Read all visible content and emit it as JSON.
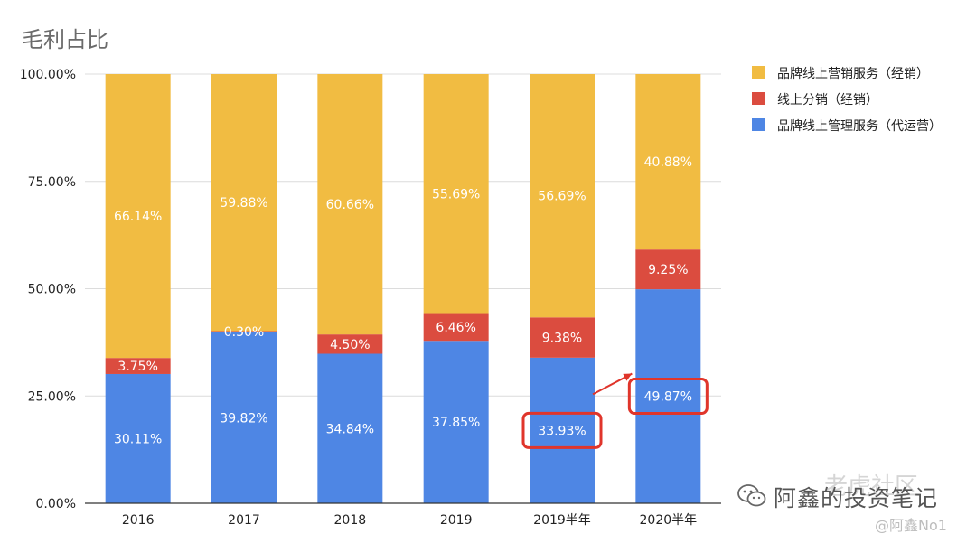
{
  "chart_data": {
    "type": "bar",
    "stacked": true,
    "title": "毛利占比",
    "categories": [
      "2016",
      "2017",
      "2018",
      "2019",
      "2019半年",
      "2020半年"
    ],
    "series": [
      {
        "name": "品牌线上管理服务（代运营）",
        "color": "#4E86E4",
        "values": [
          30.11,
          39.82,
          34.84,
          37.85,
          33.93,
          49.87
        ],
        "labels": [
          "30.11%",
          "39.82%",
          "34.84%",
          "37.85%",
          "33.93%",
          "49.87%"
        ]
      },
      {
        "name": "线上分销（经销）",
        "color": "#DB4C3F",
        "values": [
          3.75,
          0.3,
          4.5,
          6.46,
          9.38,
          9.25
        ],
        "labels": [
          "3.75%",
          "0.30%",
          "4.50%",
          "6.46%",
          "9.38%",
          "9.25%"
        ]
      },
      {
        "name": "品牌线上营销服务（经销）",
        "color": "#F1BC42",
        "values": [
          66.14,
          59.88,
          60.66,
          55.69,
          56.69,
          40.88
        ],
        "labels": [
          "66.14%",
          "59.88%",
          "60.66%",
          "55.69%",
          "56.69%",
          "40.88%"
        ]
      }
    ],
    "ylim": [
      0,
      100
    ],
    "yticks": [
      "0.00%",
      "25.00%",
      "50.00%",
      "75.00%",
      "100.00%"
    ],
    "legend_position": "right",
    "legend_order": [
      "品牌线上营销服务（经销）",
      "线上分销（经销）",
      "品牌线上管理服务（代运营）"
    ],
    "grid": true,
    "highlights": [
      "33.93%",
      "49.87%"
    ],
    "highlight_color": "#E0352B"
  },
  "watermark": {
    "account": "阿鑫的投资笔记",
    "community": "老虎社区",
    "handle": "@阿鑫No1"
  }
}
